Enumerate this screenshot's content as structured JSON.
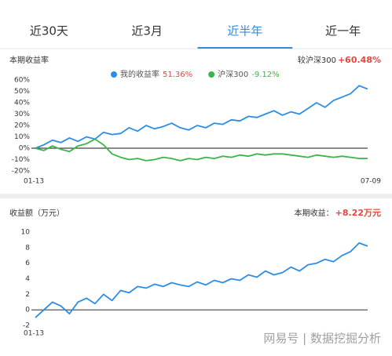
{
  "tabs": {
    "items": [
      "近30天",
      "近3月",
      "近半年",
      "近一年"
    ],
    "active": 2
  },
  "chart_data": [
    {
      "type": "line",
      "title": "本期收益率",
      "compare_label": "较沪深300",
      "compare_value": "+60.48%",
      "categories": [
        "01-13",
        null,
        null,
        null,
        null,
        null,
        null,
        null,
        null,
        null,
        null,
        null,
        null,
        null,
        null,
        null,
        null,
        null,
        null,
        null,
        null,
        null,
        null,
        null,
        null,
        null,
        null,
        null,
        null,
        null,
        null,
        null,
        null,
        null,
        null,
        null,
        null,
        null,
        null,
        "07-09"
      ],
      "series": [
        {
          "name": "我的收益率",
          "legend_value": "51.36%",
          "color": "#2b8ee6",
          "value_color": "#e8453c",
          "values": [
            0,
            3,
            7,
            5,
            9,
            6,
            10,
            8,
            14,
            12,
            13,
            18,
            15,
            20,
            17,
            19,
            22,
            18,
            16,
            20,
            18,
            22,
            21,
            25,
            24,
            28,
            27,
            30,
            33,
            29,
            32,
            30,
            35,
            40,
            36,
            42,
            45,
            48,
            55,
            52
          ]
        },
        {
          "name": "沪深300",
          "legend_value": "-9.12%",
          "color": "#3cb44b",
          "value_color": "#3cb44b",
          "values": [
            0,
            -2,
            2,
            -1,
            -3,
            2,
            4,
            8,
            3,
            -5,
            -8,
            -10,
            -9,
            -11,
            -10,
            -8,
            -9,
            -11,
            -9,
            -10,
            -8,
            -9,
            -7,
            -8,
            -6,
            -7,
            -5,
            -6,
            -5,
            -5,
            -6,
            -7,
            -8,
            -6,
            -7,
            -8,
            -7,
            -8,
            -9,
            -9
          ]
        }
      ],
      "ylim": [
        -20,
        60
      ],
      "yticks": [
        {
          "value": 60,
          "label": "60%"
        },
        {
          "value": 50,
          "label": "50%"
        },
        {
          "value": 40,
          "label": "40%"
        },
        {
          "value": 30,
          "label": "30%"
        },
        {
          "value": 20,
          "label": "20%"
        },
        {
          "value": 10,
          "label": "10%"
        },
        {
          "value": 0,
          "label": "0%"
        },
        {
          "value": -10,
          "label": "-10%"
        },
        {
          "value": -20,
          "label": "-20%"
        }
      ]
    },
    {
      "type": "line",
      "title": "收益额（万元）",
      "compare_label": "本期收益：",
      "compare_value": "+8.22万元",
      "categories": [
        "01-13",
        null,
        null,
        null,
        null,
        null,
        null,
        null,
        null,
        null,
        null,
        null,
        null,
        null,
        null,
        null,
        null,
        null,
        null,
        null,
        null,
        null,
        null,
        null,
        null,
        null,
        null,
        null,
        null,
        null,
        null,
        null,
        null,
        null,
        null,
        null,
        null,
        null,
        null,
        null
      ],
      "series": [
        {
          "color": "#2b8ee6",
          "values": [
            -1,
            0,
            1,
            0.5,
            -0.5,
            1,
            1.5,
            0.8,
            2,
            1.2,
            2.5,
            2.2,
            3,
            2.8,
            3.3,
            3,
            3.5,
            3.2,
            3,
            3.6,
            3.2,
            3.8,
            3.5,
            4,
            3.8,
            4.5,
            4.2,
            5,
            4.5,
            4.8,
            5.5,
            5,
            5.8,
            6,
            6.5,
            6.2,
            7,
            7.5,
            8.6,
            8.2
          ]
        }
      ],
      "ylim": [
        -2,
        10
      ],
      "yticks": [
        10,
        8,
        6,
        4,
        2,
        0,
        -2
      ]
    }
  ],
  "watermark": "网易号 | 数据挖掘分析"
}
